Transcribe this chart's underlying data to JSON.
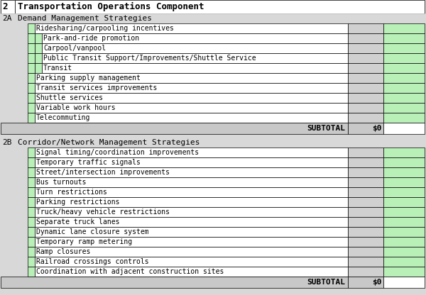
{
  "title": "Transportation Operations Component",
  "section_num": "2",
  "section_2a": "2A",
  "section_2a_title": "Demand Management Strategies",
  "section_2b": "2B",
  "section_2b_title": "Corridor/Network Management Strategies",
  "subtotal_label": "SUBTOTAL",
  "subtotal_value": "$0",
  "bg_color": "#d8d8d8",
  "white": "#ffffff",
  "green_cell": "#b8f0b8",
  "gray_cell": "#d0d0d0",
  "subtotal_bg": "#c8c8c8",
  "border_color": "#000000",
  "text_color": "#000000",
  "section_2a_rows": [
    {
      "label": "Ridesharing/carpooling incentives",
      "indent": 1
    },
    {
      "label": "Park-and-ride promotion",
      "indent": 2
    },
    {
      "label": "Carpool/vanpool",
      "indent": 2
    },
    {
      "label": "Public Transit Support/Improvements/Shuttle Service",
      "indent": 2
    },
    {
      "label": "Transit",
      "indent": 2
    },
    {
      "label": "Parking supply management",
      "indent": 1
    },
    {
      "label": "Transit services improvements",
      "indent": 1
    },
    {
      "label": "Shuttle services",
      "indent": 1
    },
    {
      "label": "Variable work hours",
      "indent": 1
    },
    {
      "label": "Telecommuting",
      "indent": 1
    }
  ],
  "section_2b_rows": [
    {
      "label": "Signal timing/coordination improvements",
      "indent": 1
    },
    {
      "label": "Temporary traffic signals",
      "indent": 1
    },
    {
      "label": "Street/intersection improvements",
      "indent": 1
    },
    {
      "label": "Bus turnouts",
      "indent": 1
    },
    {
      "label": "Turn restrictions",
      "indent": 1
    },
    {
      "label": "Parking restrictions",
      "indent": 1
    },
    {
      "label": "Truck/heavy vehicle restrictions",
      "indent": 1
    },
    {
      "label": "Separate truck lanes",
      "indent": 1
    },
    {
      "label": "Dynamic lane closure system",
      "indent": 1
    },
    {
      "label": "Temporary ramp metering",
      "indent": 1
    },
    {
      "label": "Ramp closures",
      "indent": 1
    },
    {
      "label": "Railroad crossings controls",
      "indent": 1
    },
    {
      "label": "Coordination with adjacent construction sites",
      "indent": 1
    }
  ]
}
